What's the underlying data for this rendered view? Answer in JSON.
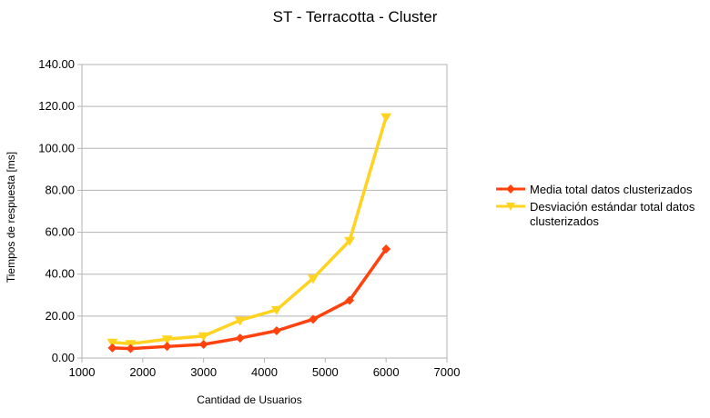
{
  "chart_data": {
    "type": "line",
    "title": "ST - Terracotta - Cluster",
    "xlabel": "Cantidad de Usuarios",
    "ylabel": "Tiempos de respuesta [ms]",
    "xlim": [
      1000,
      7000
    ],
    "ylim": [
      0,
      140
    ],
    "xticks": [
      "1000",
      "2000",
      "3000",
      "4000",
      "5000",
      "6000",
      "7000"
    ],
    "yticks": [
      "0.00",
      "20.00",
      "40.00",
      "60.00",
      "80.00",
      "100.00",
      "120.00",
      "140.00"
    ],
    "grid": "horizontal",
    "legend_position": "right",
    "series": [
      {
        "name": "Media total datos clusterizados",
        "color": "#ff420e",
        "marker": "diamond",
        "x": [
          1500,
          1800,
          2400,
          3000,
          3600,
          4200,
          4800,
          5400,
          6000
        ],
        "y": [
          4.8,
          4.5,
          5.5,
          6.5,
          9.5,
          13.0,
          18.5,
          27.5,
          52.0
        ]
      },
      {
        "name": "Desviación estándar total datos clusterizados",
        "color": "#ffd320",
        "marker": "triangle-down",
        "x": [
          1500,
          1800,
          2400,
          3000,
          3600,
          4200,
          4800,
          5400,
          6000
        ],
        "y": [
          7.5,
          6.8,
          9.0,
          10.5,
          18.0,
          23.0,
          38.0,
          56.0,
          115.0
        ]
      }
    ]
  }
}
